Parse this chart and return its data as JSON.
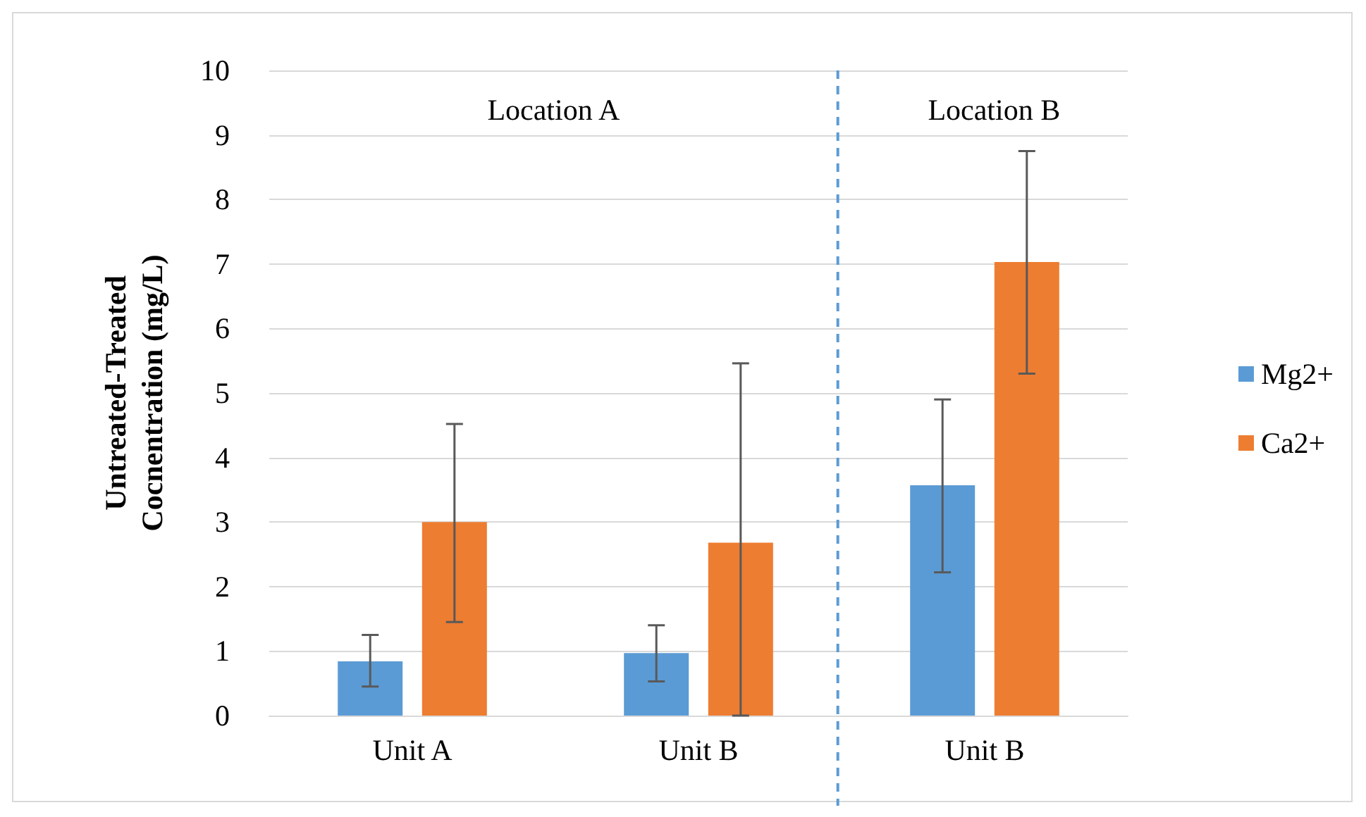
{
  "chart_data": {
    "type": "bar",
    "ylabel": "Untreated-Treated\nCocnentration (mg/L)",
    "categories": [
      "Unit A",
      "Unit B",
      "Unit B"
    ],
    "series": [
      {
        "name": "Mg2+",
        "color": "#5b9bd5",
        "values": [
          0.84,
          0.97,
          3.57
        ],
        "errors": [
          [
            0.45,
            1.25
          ],
          [
            0.53,
            1.4
          ],
          [
            2.22,
            4.9
          ]
        ]
      },
      {
        "name": "Ca2+",
        "color": "#ed7d31",
        "values": [
          3.0,
          2.68,
          7.03
        ],
        "errors": [
          [
            1.45,
            4.52
          ],
          [
            0,
            5.46
          ],
          [
            5.3,
            8.75
          ]
        ]
      }
    ],
    "ylim": [
      0,
      10
    ],
    "yticks": [
      0,
      1,
      2,
      3,
      4,
      5,
      6,
      7,
      8,
      9,
      10
    ],
    "grid": "y",
    "legend": "right",
    "ref_lines": [
      {
        "axis": "x",
        "value": "Unit B",
        "color": "#5b9bd5",
        "line_style": "dashed"
      }
    ],
    "annotations": [
      "Location A",
      "Location B"
    ]
  }
}
